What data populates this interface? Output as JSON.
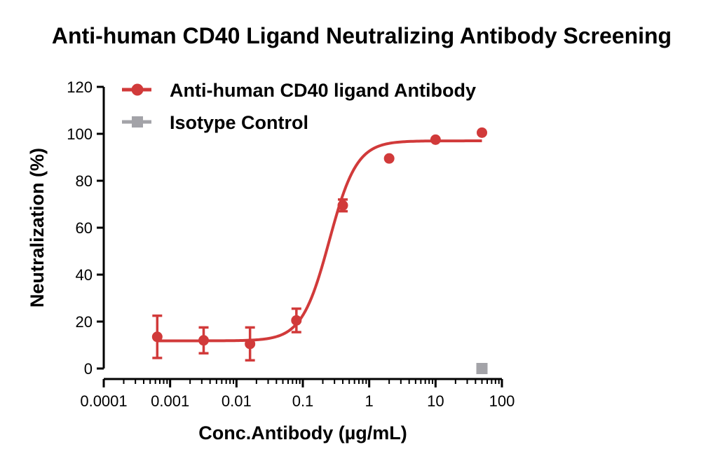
{
  "chart_data": {
    "type": "scatter",
    "title": "Anti-human CD40 Ligand Neutralizing Antibody Screening",
    "xlabel": "Conc.Antibody (µg/mL)",
    "ylabel": "Neutralization (%)",
    "x_scale": "log",
    "xlim": [
      0.0001,
      100
    ],
    "ylim": [
      0,
      120
    ],
    "x_ticks": [
      0.0001,
      0.001,
      0.01,
      0.1,
      1,
      10,
      100
    ],
    "x_tick_labels": [
      "0.0001",
      "0.001",
      "0.01",
      "0.1",
      "1",
      "10",
      "100"
    ],
    "y_ticks": [
      0,
      20,
      40,
      60,
      80,
      100,
      120
    ],
    "y_tick_labels": [
      "0",
      "20",
      "40",
      "60",
      "80",
      "100",
      "120"
    ],
    "grid": false,
    "legend_position": "top-left",
    "series": [
      {
        "name": "Anti-human CD40 ligand Antibody",
        "color": "#d13a3a",
        "marker": "circle",
        "x": [
          0.00064,
          0.0032,
          0.016,
          0.08,
          0.4,
          2,
          10,
          50
        ],
        "y": [
          13.5,
          12,
          10.5,
          20.5,
          69.5,
          89.5,
          97.5,
          100.5
        ],
        "error": [
          9,
          5.5,
          7,
          5,
          2.5,
          0,
          0,
          0
        ],
        "fit": {
          "model": "4PL",
          "bottom": 11.8,
          "top": 97,
          "ec50": 0.25,
          "hill": 2.1
        }
      },
      {
        "name": "Isotype Control",
        "color": "#a3a3a8",
        "marker": "square",
        "x": [
          50
        ],
        "y": [
          0
        ],
        "error": [
          0
        ]
      }
    ]
  }
}
